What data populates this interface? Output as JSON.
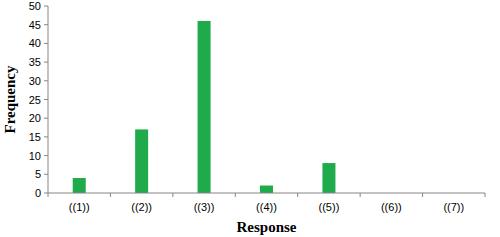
{
  "chart_data": {
    "type": "bar",
    "x_label": "Response",
    "y_label": "Frequency",
    "categories": [
      "((1))",
      "((2))",
      "((3))",
      "((4))",
      "((5))",
      "((6))",
      "((7))"
    ],
    "values": [
      4,
      17,
      46,
      2,
      8,
      0,
      0
    ],
    "color": "#1faa4b",
    "ylim": [
      0,
      50
    ],
    "yticks": [
      0,
      5,
      10,
      15,
      20,
      25,
      30,
      35,
      40,
      45,
      50
    ],
    "grid": false
  }
}
